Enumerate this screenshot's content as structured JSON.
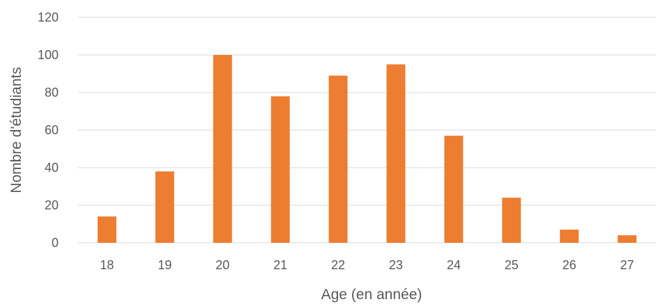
{
  "chart_data": {
    "type": "bar",
    "categories": [
      "18",
      "19",
      "20",
      "21",
      "22",
      "23",
      "24",
      "25",
      "26",
      "27"
    ],
    "values": [
      14,
      38,
      100,
      78,
      89,
      95,
      57,
      24,
      7,
      4
    ],
    "xlabel": "Age (en année)",
    "ylabel": "Nombre d'étudiants",
    "ylim": [
      0,
      120
    ],
    "yticks": [
      0,
      20,
      40,
      60,
      80,
      100,
      120
    ],
    "grid": true,
    "legend": "none",
    "bar_color": "#ED7D31"
  }
}
